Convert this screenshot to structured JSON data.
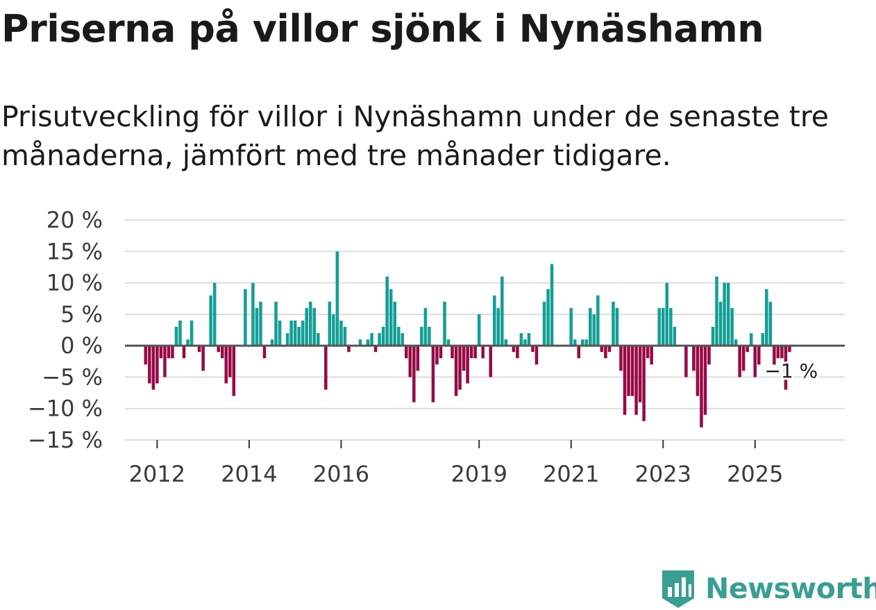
{
  "header": {
    "title": "Priserna på villor sjönk i Nynäshamn",
    "subtitle": "Prisutveckling för villor i Nynäshamn under de senaste tre månaderna, jämfört med tre månader tidigare."
  },
  "brand": {
    "name": "Newsworthy",
    "icon": "newsworthy-logo-icon",
    "color": "#3a9e93"
  },
  "chart_data": {
    "type": "bar",
    "title": "Priserna på villor sjönk i Nynäshamn",
    "xlabel": "",
    "ylabel": "",
    "ylim": [
      -15,
      20
    ],
    "grid": true,
    "yticks": [
      20,
      15,
      10,
      5,
      0,
      -5,
      -10,
      -15
    ],
    "ytick_labels": [
      "20 %",
      "15 %",
      "10 %",
      "5 %",
      "0 %",
      "−5 %",
      "−10 %",
      "−15 %"
    ],
    "x_start": 2011.75,
    "x_step": 0.08333,
    "xlim": [
      2011.3,
      2026.95
    ],
    "xticks": [
      2012,
      2014,
      2016,
      2019,
      2021,
      2023,
      2025
    ],
    "xtick_labels": [
      "2012",
      "2014",
      "2016",
      "2019",
      "2021",
      "2023",
      "2025"
    ],
    "colors": {
      "positive": "#139e95",
      "negative": "#960a45",
      "zero_line": "#555555",
      "grid": "#dddddd"
    },
    "end_label": "−1 %",
    "values": [
      -3,
      -6,
      -7,
      -6,
      -2,
      -5,
      -2,
      -2,
      3,
      4,
      -2,
      1,
      4,
      0,
      -1,
      -4,
      0,
      8,
      10,
      -1,
      -2,
      -6,
      -5,
      -8,
      0,
      0,
      9,
      0,
      10,
      6,
      7,
      -2,
      0,
      1,
      7,
      4,
      0,
      2,
      4,
      4,
      3,
      4,
      6,
      7,
      6,
      2,
      0,
      -7,
      7,
      5,
      15,
      4,
      3,
      -1,
      0,
      0,
      1,
      0,
      1,
      2,
      -1,
      2,
      3,
      11,
      9,
      7,
      3,
      2,
      -2,
      -5,
      -9,
      -4,
      3,
      6,
      3,
      -9,
      -3,
      -2,
      7,
      1,
      -2,
      -8,
      -7,
      -4,
      -6,
      -2,
      -2,
      5,
      -2,
      0,
      -5,
      8,
      6,
      11,
      1,
      0,
      -1,
      -2,
      2,
      1,
      2,
      -1,
      -3,
      0,
      7,
      9,
      13,
      0,
      0,
      0,
      0,
      6,
      1,
      -2,
      1,
      1,
      6,
      5,
      8,
      -1,
      -2,
      -1,
      7,
      6,
      -4,
      -11,
      -8,
      -8,
      -11,
      -9,
      -12,
      -2,
      -3,
      0,
      6,
      6,
      10,
      6,
      3,
      0,
      0,
      -5,
      0,
      -4,
      -8,
      -13,
      -11,
      -3,
      3,
      11,
      7,
      10,
      10,
      6,
      1,
      -5,
      -4,
      -1,
      2,
      -5,
      -3,
      2,
      9,
      7,
      -3,
      -2,
      -2,
      -7,
      -1
    ]
  }
}
